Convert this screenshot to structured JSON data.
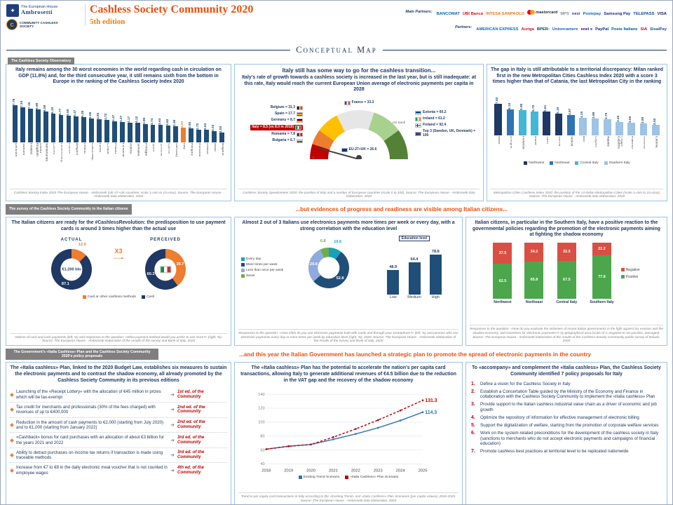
{
  "header": {
    "logo_top": "The European House",
    "logo_name": "Ambrosetti",
    "logo_mark_glyph": "✦",
    "community_logo": "COMMUNITY CASHLESS SOCIETY",
    "community_mark_glyph": "c",
    "title": "Cashless Society Community 2020",
    "edition": "5th edition",
    "main_partners_label": "Main Partners:",
    "partners_label": "Partners:",
    "main_partners": [
      {
        "name": "BANCOMAT",
        "color": "#0069B4"
      },
      {
        "name": "UBI Banca",
        "color": "#E30613"
      },
      {
        "name": "INTESA SANPAOLO",
        "color": "#E87511"
      },
      {
        "name": "mastercard",
        "color": "#1A1F36",
        "icon": "mastercard-circles"
      },
      {
        "name": "MPS",
        "color": "#8A8D8F"
      },
      {
        "name": "nexi",
        "color": "#2D32AA"
      },
      {
        "name": "Postepay",
        "color": "#0066CC"
      },
      {
        "name": "Samsung Pay",
        "color": "#1428A0"
      },
      {
        "name": "TELEPASS",
        "color": "#0D47A1"
      },
      {
        "name": "VISA",
        "color": "#1A1F71"
      }
    ],
    "partners": [
      {
        "name": "AMERICAN EXPRESS",
        "color": "#006FCF"
      },
      {
        "name": "Auriga",
        "color": "#C8102E"
      },
      {
        "name": "BPER:",
        "color": "#14375A"
      },
      {
        "name": "Unioncamere",
        "color": "#1C5FAA"
      },
      {
        "name": "enel x",
        "color": "#191970"
      },
      {
        "name": "PayPal",
        "color": "#003087"
      },
      {
        "name": "Poste Italiane",
        "color": "#005CA9"
      },
      {
        "name": "SIA",
        "color": "#E4002B"
      },
      {
        "name": "SisalPay",
        "color": "#1D4F91"
      }
    ]
  },
  "map_title": "Conceptual Map",
  "row1": {
    "tag": "The Cashless Society Observatory",
    "panel1": {
      "title": "Italy remains among the 30 worst economies in the world regarding cash in circulation on GDP (11.8%) and, for the third consecutive year, it still remains sixth from the bottom in Europe in the ranking of the Cashless Society Index 2020",
      "caption": "Cashless Society Index 2020 The European House - Ambrosetti (UE-27+UK countries; scale 1=min to 10=max). Source: The European House - Ambrosetti data elaboration, 2020"
    },
    "panel2": {
      "heading": "Italy still has some way to go for the cashless transition...",
      "subtitle": "Italy's rate of growth towards a cashless society is increased in the last year, but is still inadequate: at this rate, Italy would reach the current European Union average of electronic payments per capita in 2028",
      "gauge": {
        "top_label": {
          "flag": "fr",
          "text": "France = 33.3"
        },
        "left_labels": [
          {
            "flag": "be",
            "text": "Belgium = 31.3"
          },
          {
            "flag": "es",
            "text": "Spain = 17.7"
          },
          {
            "flag": "de",
            "text": "Germany = 8.7"
          },
          {
            "flag": "it",
            "text": "Italy = 8.5 (vs 8.0 in 2019)",
            "highlight": true
          },
          {
            "flag": "ro",
            "text": "Romania = 7.8"
          },
          {
            "flag": "bg",
            "text": "Bulgaria = 6.7"
          }
        ],
        "right_labels": [
          {
            "flag": "ee",
            "text": "Estonia = 60.2"
          },
          {
            "flag": "ie",
            "text": "Ireland = 61.2"
          },
          {
            "flag": "fi",
            "text": "Finland = 92.4"
          },
          {
            "flag": "multi",
            "text": "Top 3 (Sweden, UK, Denmark) = 100"
          }
        ],
        "center_label": {
          "flag": "eu",
          "text": "EU-27+UK = 26.6"
        },
        "on_track": "On track",
        "scale_min": "0",
        "scale_max": "100"
      },
      "caption": "Cashless Society Speedometer 2020: the position of Italy and a number of European countries (scale 0 to 100). Source: The European House - Ambrosetti data elaboration, 2020"
    },
    "panel3": {
      "title": "The gap in Italy is still attributable to a territorial discrepancy: Milan ranked first in the new Metropolitan Cities Cashless Index 2020 with a score 3 times higher than that of Catania, the last Metropolitan City in the ranking",
      "caption": "Metropolitan Cities Cashless Index 2020: the position of the 14 Italian Metropolitan Cities (scale 1=min to 10=max). Source: The European House - Ambrosetti data elaboration, 2020"
    }
  },
  "row2": {
    "tag": "The survey of the Cashless Society Community to the Italian citizens",
    "statement": "...but evidences of progress and readiness are visible among Italian citizens...",
    "panel1": {
      "title": "The Italian citizens are ready for the #CashlessRevolution: the predisposition to use payment cards is around 3 times higher than the actual use",
      "actual_label": "ACTUAL",
      "perceived_label": "PERCEIVED",
      "multiplier": "X3",
      "caption": "Volume of card and cash payments (left, %) and responses to the question: «What payment method would you prefer to use more?» (right, %). Source: The European House - Ambrosetti elaboration of the results of the survey and Bank of Italy, 2020"
    },
    "panel2": {
      "title": "Almost 2 out of 3 Italians use electronics payments more times per week or every day, with a strong correlation with the education level",
      "education_label": "Education level",
      "caption": "Responses to the question: «How often do you use electronic payments both with cards and through your smartphone?» (left, %) and persons who use electronic payments every day or more times per week by education level (right, %), 2020. Source: The European House - Ambrosetti elaboration of the results of the survey and Bank of Italy, 2020"
    },
    "panel3": {
      "title": "Italian citizens, in particular in the Southern Italy, have a positive reaction to the governmental policies regarding the promotion of the electronic payments aiming at fighting the shadow economy",
      "caption": "Responses to the question: «How do you evaluate the initiatives of recent Italian governments in the fight against tax evasion and the shadow economy, and incentives for electronic payments?» by geographical area (scale of 1=negative to 10=positive, averages). Source: The European House - Ambrosetti elaboration of the results of the Cashless Society Community public survey of Italians, 2020"
    }
  },
  "row3": {
    "tag": "The Government's «Italia Cashless» Plan and the Cashless Society Community 2020's policy proposals",
    "statement": "...and this year the Italian Government has launched a strategic plan to promote the spread of electronic payments in the country",
    "panel1": {
      "title": "The «Italia cashless» Plan, linked to the 2020 Budget Law, establishes six measures to sustain the electronic payments and to contrast the shadow economy, all already promoted by the Cashless Society Community in its previous editions",
      "measures": [
        {
          "text": "Launching of the «Receipt Lottery» with the allocation of €45 million in prizes which will be tax-exempt",
          "ed": "1st ed. of the Community"
        },
        {
          "text": "Tax credit for merchants and professionals (30% of the fees charged) with revenues of up to €400,000",
          "ed": "2nd ed. of the Community"
        },
        {
          "text": "Reduction in the amount of cash payments to €2,000 (starting from July 2020) and to €1,000 (starting from January 2022)",
          "ed": "2nd ed. of the Community"
        },
        {
          "text": "«Cashback» bonus for card purchases with an allocation of about €3 billion for the years 2021 and 2022",
          "ed": "3rd ed. of the Community"
        },
        {
          "text": "Ability to detract purchases on income tax returns if transaction is made using traceable methods",
          "ed": "3rd ed. of the Community"
        },
        {
          "text": "Increase from €7 to €8 in the daily electronic meal voucher that is not counted in employee wages",
          "ed": "4th ed. of the Community"
        }
      ]
    },
    "panel2": {
      "title": "The «Italia cashless» Plan has the potential to accelerate the nation's per capita card transactions, allowing Italy to generate additional revenues of €4.5 billion due to the reduction in the VAT gap and the recovery of the shadow economy",
      "caption": "Trend in per capita card transactions in Italy according to the «Existing Trend» and «Italia Cashless» Plan Scenarios (per capita values), 2018-2025. Source: The European House - Ambrosetti data elaboration, 2020"
    },
    "panel3": {
      "title": "To «accompany» and complement the «Italia cashless» Plan, the Cashless Society Community identified 7 policy proposals for Italy",
      "proposals": [
        "Define a vision for the Cashless Society in Italy",
        "Establish a Concertation Table guided by the Ministry of the Economy and Finance in collaboration with the Cashless Society Community to implement the «Italia cashless» Plan",
        "Provide support to the Italian cashless industrial value chain as a driver of economic and job growth",
        "Optimize the repository of information for effective management of electronic billing",
        "Support the digitalization of welfare, starting from the promotion of corporate welfare services",
        "Work on the system-related preconditions for the development of the cashless society in Italy (sanctions to merchants who do not accept electronic payments and campaigns of financial education)",
        "Promote cashless best practices at territorial level to be replicated nationwide"
      ]
    }
  },
  "chart_data": [
    {
      "id": "eu-ranking",
      "type": "bar",
      "title": "Cashless Society Index 2020 (EU-27+UK)",
      "categories": [
        "Denmark",
        "Sweden",
        "Finland",
        "United Kingdom",
        "Netherlands",
        "Estonia",
        "Luxembourg",
        "France",
        "Belgium",
        "Ireland",
        "Czech Rep.",
        "Latvia",
        "Croatia",
        "Poland",
        "Lithuania",
        "Austria",
        "Slovakia",
        "Portugal",
        "Spain",
        "Slovenia",
        "Cyprus",
        "Germany",
        "Italy",
        "Hungary",
        "Romania",
        "Greece",
        "Malta",
        "Bulgaria"
      ],
      "values": [
        7.78,
        7.34,
        7.18,
        6.98,
        6.58,
        6.1,
        5.77,
        5.58,
        5.47,
        5.35,
        5.05,
        4.93,
        4.72,
        4.47,
        4.27,
        4.17,
        4.12,
        3.9,
        3.74,
        3.64,
        3.62,
        3.46,
        3.04,
        2.92,
        2.72,
        2.63,
        2.33,
        2.03
      ],
      "highlight_index": 22,
      "highlight_color": "#ED7D31",
      "bar_color": "#1F4E79",
      "ylim": [
        0,
        8
      ]
    },
    {
      "id": "speedometer",
      "type": "gauge",
      "scale": [
        0,
        100
      ],
      "italy_value": 8.5,
      "italy_value_2019": 8.0,
      "eu_value": 26.6,
      "points": [
        {
          "label": "Bulgaria",
          "value": 6.7
        },
        {
          "label": "Romania",
          "value": 7.8
        },
        {
          "label": "Italy",
          "value": 8.5
        },
        {
          "label": "Germany",
          "value": 8.7
        },
        {
          "label": "Spain",
          "value": 17.7
        },
        {
          "label": "EU-27+UK",
          "value": 26.6
        },
        {
          "label": "Belgium",
          "value": 31.3
        },
        {
          "label": "France",
          "value": 33.3
        },
        {
          "label": "Estonia",
          "value": 60.2
        },
        {
          "label": "Ireland",
          "value": 61.2
        },
        {
          "label": "Finland",
          "value": 92.4
        },
        {
          "label": "Top 3 (Sweden, UK, Denmark)",
          "value": 100
        }
      ]
    },
    {
      "id": "metro-ranking",
      "type": "bar",
      "title": "Metropolitan Cities Cashless Index 2020",
      "categories": [
        "Milan",
        "Bologna",
        "Florence",
        "Rome",
        "Turin",
        "Genoa",
        "Venice",
        "Bari",
        "Cagliari",
        "Naples",
        "Reggio Calabria",
        "Palermo",
        "Messina",
        "Catania"
      ],
      "values": [
        7.52,
        6.18,
        5.95,
        5.72,
        5.61,
        5.1,
        4.87,
        4.15,
        3.98,
        3.75,
        3.22,
        3.05,
        2.8,
        2.52
      ],
      "regions": [
        "NW",
        "NE",
        "C",
        "C",
        "NW",
        "NW",
        "NE",
        "S",
        "S",
        "S",
        "S",
        "S",
        "S",
        "S"
      ],
      "region_colors": {
        "NW": "#1F3864",
        "NE": "#2E74B5",
        "C": "#41B8D5",
        "S": "#9DC3E6"
      },
      "legend": [
        {
          "label": "Northwest",
          "key": "NW"
        },
        {
          "label": "Northeast",
          "key": "NE"
        },
        {
          "label": "Central Italy",
          "key": "C"
        },
        {
          "label": "Southern Italy",
          "key": "S"
        }
      ],
      "ylim": [
        0,
        8
      ]
    },
    {
      "id": "actual-donut",
      "type": "pie",
      "labels": [
        "Card or other cashless methods",
        "Cash"
      ],
      "values": [
        12.9,
        87.1
      ],
      "colors": [
        "#ED7D31",
        "#1F3864"
      ],
      "center_text": "€1.200 bln"
    },
    {
      "id": "perceived-donut",
      "type": "pie",
      "labels": [
        "Card or other cashless methods",
        "Cash"
      ],
      "values": [
        39.7,
        60.3
      ],
      "colors": [
        "#ED7D31",
        "#1F3864"
      ],
      "center": "italy-flag"
    },
    {
      "id": "frequency-donut",
      "type": "pie",
      "labels": [
        "Every day",
        "More times per week",
        "Less than once per week",
        "Never"
      ],
      "values": [
        10.6,
        52.8,
        29.8,
        6.8
      ],
      "colors": [
        "#17A2B8",
        "#1F4E79",
        "#8FAADC",
        "#70AD47"
      ]
    },
    {
      "id": "education-bars",
      "type": "bar",
      "title": "Education level",
      "categories": [
        "Low",
        "Medium",
        "High"
      ],
      "values": [
        48.9,
        64.4,
        78.8
      ],
      "bar_color": "#1F4E79",
      "ylim": [
        0,
        100
      ]
    },
    {
      "id": "policy-reaction",
      "type": "bar",
      "stacked": true,
      "categories": [
        "Northwest",
        "Northeast",
        "Central Italy",
        "Southern Italy"
      ],
      "series": [
        {
          "name": "Negative",
          "color": "#D94F43",
          "values": [
            37.5,
            34.2,
            32.5,
            22.2
          ]
        },
        {
          "name": "Positive",
          "color": "#4CA64C",
          "values": [
            62.5,
            65.8,
            67.5,
            77.8
          ]
        }
      ],
      "ylim": [
        0,
        100
      ]
    },
    {
      "id": "card-transactions",
      "type": "line",
      "x": [
        2018,
        2019,
        2020,
        2021,
        2022,
        2023,
        2024,
        2025
      ],
      "series": [
        {
          "name": "Existing Trend Scenario",
          "color": "#2E74B5",
          "values": [
            61.2,
            65.4,
            68.0,
            75.3,
            83.1,
            91.9,
            102.4,
            114.3
          ],
          "end_label": "114.3"
        },
        {
          "name": "«Italia Cashless» Plan Scenario",
          "color": "#C00000",
          "values": [
            61.2,
            65.4,
            68.0,
            78.5,
            90.2,
            103.0,
            116.8,
            131.3
          ],
          "end_label": "131.3"
        }
      ],
      "ylim": [
        40,
        140
      ],
      "yticks": [
        40,
        60,
        80,
        100,
        120,
        140
      ]
    }
  ]
}
